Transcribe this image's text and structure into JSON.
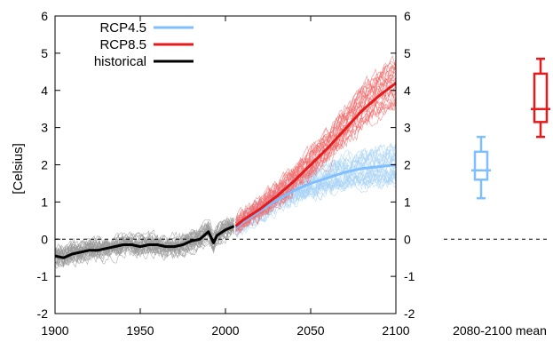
{
  "chart_data": {
    "type": "line",
    "ylabel": "[Celsius]",
    "xlim": [
      1900,
      2100
    ],
    "ylim": [
      -2,
      6
    ],
    "x_ticks": [
      1900,
      1950,
      2000,
      2050,
      2100
    ],
    "y_ticks": [
      -2,
      -1,
      0,
      1,
      2,
      3,
      4,
      5,
      6
    ],
    "legend_position": "top-left",
    "zero_reference_line": true,
    "series": [
      {
        "name": "RCP4.5",
        "color": "#7fbfff",
        "x": [
          2006,
          2010,
          2020,
          2030,
          2040,
          2050,
          2060,
          2070,
          2080,
          2090,
          2100
        ],
        "y": [
          0.3,
          0.45,
          0.75,
          1.05,
          1.3,
          1.5,
          1.65,
          1.8,
          1.9,
          1.95,
          2.0
        ]
      },
      {
        "name": "RCP8.5",
        "color": "#e41a1c",
        "x": [
          2006,
          2010,
          2020,
          2030,
          2040,
          2050,
          2060,
          2070,
          2080,
          2090,
          2100
        ],
        "y": [
          0.35,
          0.5,
          0.8,
          1.15,
          1.55,
          2.0,
          2.45,
          2.95,
          3.45,
          3.85,
          4.2
        ]
      },
      {
        "name": "historical",
        "color": "#000000",
        "x": [
          1900,
          1905,
          1910,
          1915,
          1920,
          1925,
          1930,
          1935,
          1940,
          1945,
          1950,
          1955,
          1960,
          1965,
          1970,
          1975,
          1980,
          1985,
          1990,
          1993,
          1995,
          2000,
          2005
        ],
        "y": [
          -0.45,
          -0.5,
          -0.4,
          -0.35,
          -0.3,
          -0.3,
          -0.25,
          -0.2,
          -0.15,
          -0.15,
          -0.2,
          -0.15,
          -0.15,
          -0.2,
          -0.2,
          -0.15,
          -0.05,
          0.0,
          0.2,
          -0.1,
          0.1,
          0.25,
          0.35
        ]
      }
    ],
    "boxplot": {
      "label": "2080-2100 mean",
      "boxes": [
        {
          "name": "RCP4.5",
          "color": "#7fbfff",
          "min": 1.1,
          "q1": 1.6,
          "median": 1.85,
          "q3": 2.35,
          "max": 2.75
        },
        {
          "name": "RCP8.5",
          "color": "#e41a1c",
          "min": 2.75,
          "q1": 3.15,
          "median": 3.5,
          "q3": 4.45,
          "max": 4.85
        }
      ]
    }
  }
}
